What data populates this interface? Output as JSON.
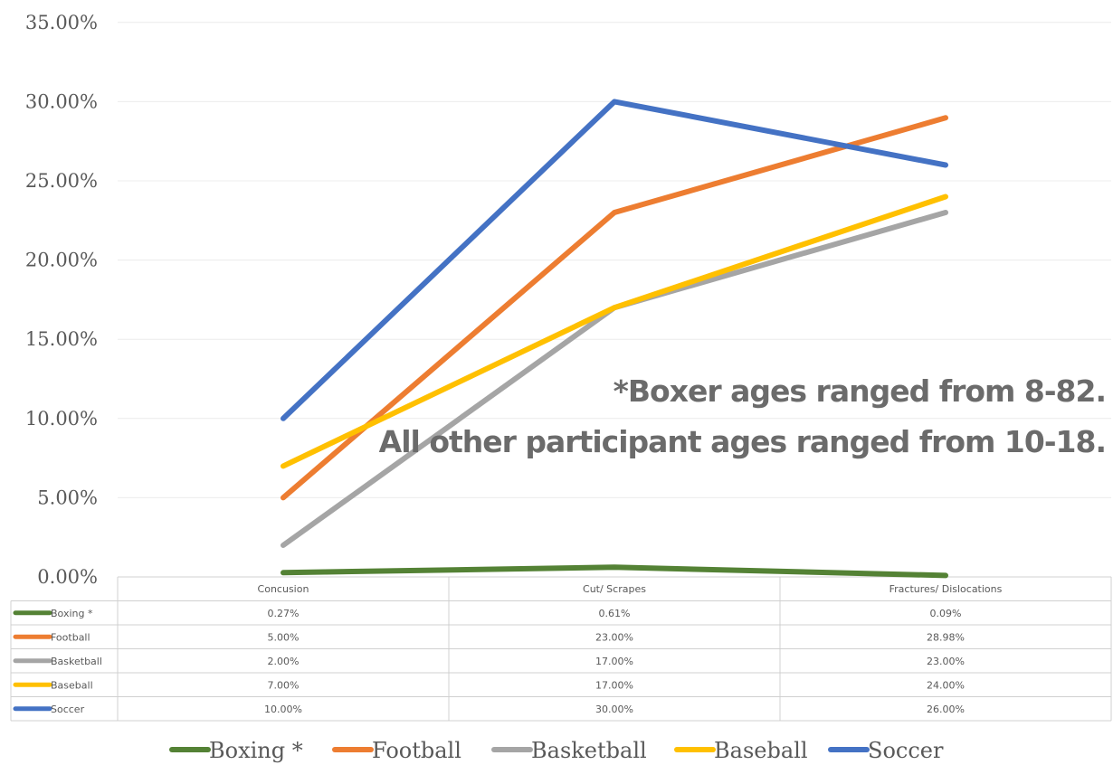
{
  "chart_data": {
    "type": "line",
    "categories": [
      "Concusion",
      "Cut/ Scrapes",
      "Fractures/ Dislocations"
    ],
    "ylim": [
      0,
      35
    ],
    "y_unit": "%",
    "ytick_labels": [
      "0.00%",
      "5.00%",
      "10.00%",
      "15.00%",
      "20.00%",
      "25.00%",
      "30.00%",
      "35.00%"
    ],
    "grid": true,
    "legend_position": "bottom",
    "series": [
      {
        "name": "Boxing *",
        "color": "#548235",
        "values": [
          0.27,
          0.61,
          0.09
        ],
        "labels": [
          "0.27%",
          "0.61%",
          "0.09%"
        ]
      },
      {
        "name": "Football",
        "color": "#ED7D31",
        "values": [
          5.0,
          23.0,
          28.98
        ],
        "labels": [
          "5.00%",
          "23.00%",
          "28.98%"
        ]
      },
      {
        "name": "Basketball",
        "color": "#A5A5A5",
        "values": [
          2.0,
          17.0,
          23.0
        ],
        "labels": [
          "2.00%",
          "17.00%",
          "23.00%"
        ]
      },
      {
        "name": "Baseball",
        "color": "#FFC000",
        "values": [
          7.0,
          17.0,
          24.0
        ],
        "labels": [
          "7.00%",
          "17.00%",
          "24.00%"
        ]
      },
      {
        "name": "Soccer",
        "color": "#4472C4",
        "values": [
          10.0,
          30.0,
          26.0
        ],
        "labels": [
          "10.00%",
          "30.00%",
          "26.00%"
        ]
      }
    ],
    "annotations": [
      "*Boxer ages ranged from 8-82.",
      "All other participant ages ranged from 10-18."
    ]
  }
}
